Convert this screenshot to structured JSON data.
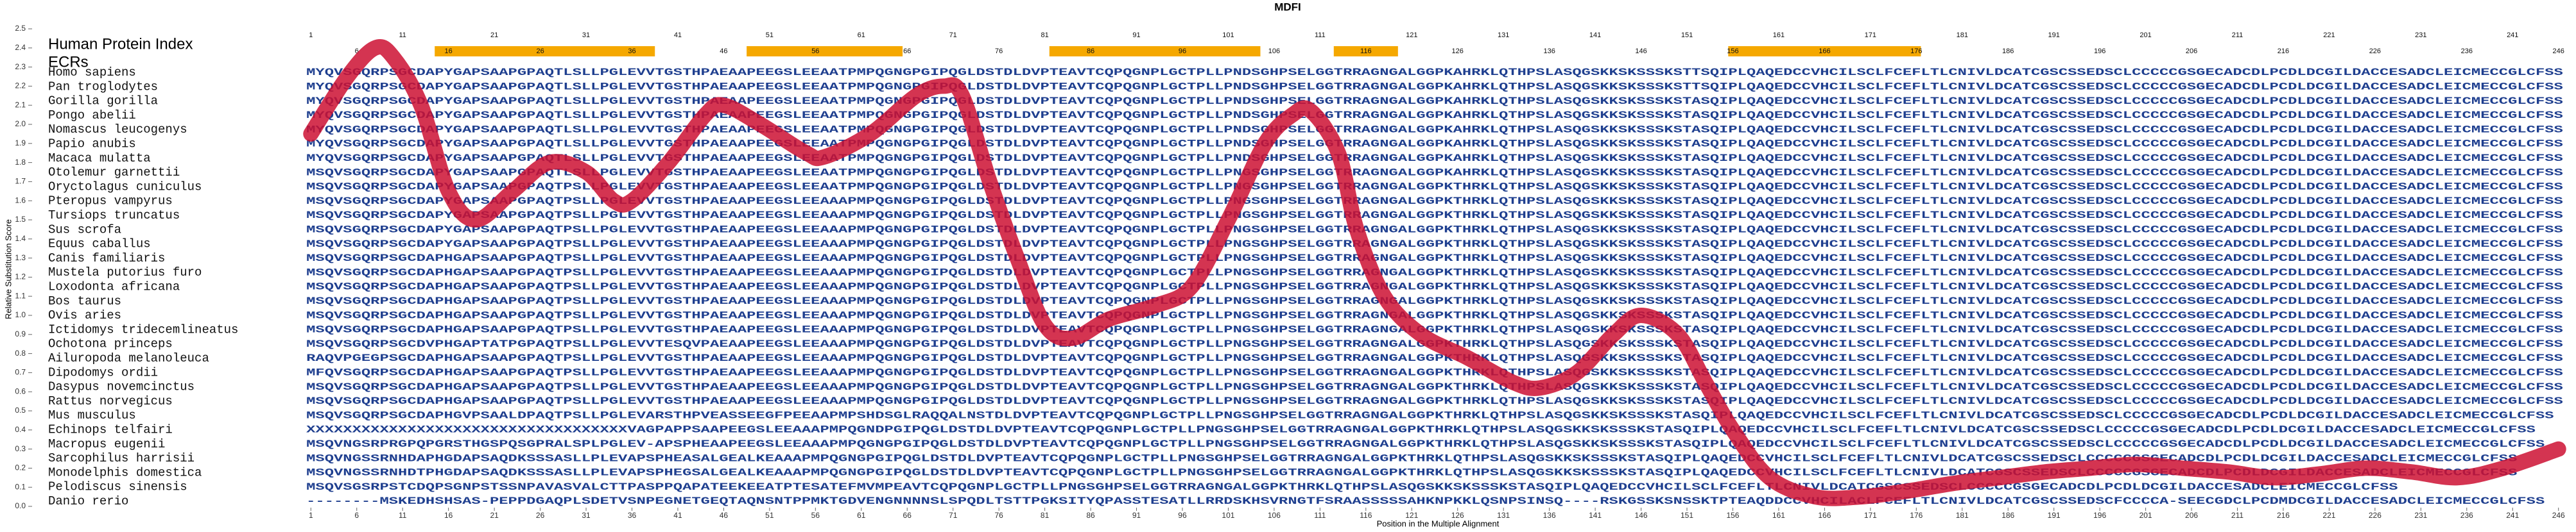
{
  "chart_data": {
    "type": "line",
    "title": "MDFI",
    "index_label": "Human Protein Index",
    "ecr_label": "ECRs",
    "xlabel": "Position in the Multiple Alignment",
    "ylabel": "Relative Substitution Score",
    "color": "#cc1133",
    "ecr_color": "#f5a800",
    "xlim": [
      0,
      247
    ],
    "ylim": [
      0,
      2.5
    ],
    "xticks": [
      1,
      6,
      11,
      16,
      21,
      26,
      31,
      36,
      41,
      46,
      51,
      56,
      61,
      66,
      71,
      76,
      81,
      86,
      91,
      96,
      101,
      106,
      111,
      116,
      121,
      126,
      131,
      136,
      141,
      146,
      151,
      156,
      161,
      166,
      171,
      176,
      181,
      186,
      191,
      196,
      201,
      206,
      211,
      216,
      221,
      226,
      231,
      236,
      241,
      246
    ],
    "yticks": [
      {
        "value": 0,
        "label": "0.0"
      },
      0.1,
      0.2,
      0.3,
      0.4,
      0.5,
      0.6,
      0.7,
      0.8,
      0.9,
      {
        "value": 1,
        "label": "1.0"
      },
      1.1,
      1.2,
      1.3,
      1.4,
      1.5,
      1.6,
      1.7,
      1.8,
      1.9,
      {
        "value": 2,
        "label": "2.0"
      },
      2.1,
      2.2,
      2.3,
      2.4,
      2.5
    ],
    "ecrs": [
      [
        15,
        38
      ],
      [
        49,
        65
      ],
      [
        82,
        104
      ],
      [
        113,
        119
      ],
      [
        156,
        176
      ]
    ],
    "x": [
      1,
      5,
      8,
      10,
      13,
      16,
      19,
      23,
      27,
      31,
      34,
      36,
      40,
      44,
      46,
      50,
      55,
      57,
      62,
      67,
      70,
      72,
      75,
      78,
      81,
      84,
      88,
      93,
      97,
      101,
      105,
      108,
      110,
      113,
      115,
      118,
      122,
      127,
      132,
      135,
      139,
      143,
      146,
      150,
      153,
      156,
      160,
      165,
      170,
      175,
      180,
      185,
      190,
      195,
      200,
      205,
      210,
      215,
      220,
      225,
      230,
      235,
      240,
      246
    ],
    "values": [
      1.95,
      2.25,
      2.4,
      2.35,
      2.1,
      1.65,
      1.5,
      1.65,
      1.8,
      1.75,
      1.6,
      1.6,
      1.8,
      2.05,
      2.1,
      2.0,
      1.85,
      1.83,
      1.95,
      2.15,
      2.2,
      2.15,
      1.7,
      1.3,
      0.95,
      0.88,
      0.98,
      1.05,
      1.15,
      1.5,
      1.9,
      2.05,
      2.07,
      1.85,
      1.45,
      1.1,
      0.9,
      0.78,
      0.65,
      0.62,
      0.7,
      0.9,
      1.0,
      0.9,
      0.65,
      0.4,
      0.15,
      0.05,
      0.05,
      0.08,
      0.12,
      0.15,
      0.18,
      0.2,
      0.22,
      0.2,
      0.18,
      0.15,
      0.17,
      0.2,
      0.18,
      0.15,
      0.2,
      0.3
    ],
    "alignment": [
      {
        "species": "Homo sapiens",
        "sequence": "MYQVSGQRPSGCDAPYGAPSAAPGPAQTLSLLPGLEVVTGSTHPAEAAPEEGSLEEAATPMPQGNGPGIPQGLDSTDLDVPTEAVTCQPQGNPLGCTPLLPNDSGHPSELGGTRRAGNGALGGPKAHRKLQTHPSLASQGSKKSKSSSKSTTSQIPLQAQEDCCVHCILSCLFCEFLTLCNIVLDCATCGSCSSEDSCLCCCCCGSGECADCDLPCDLDCGILDACCESADCLEICMECCGLCFSS"
      },
      {
        "species": "Pan troglodytes",
        "sequence": "MYQVSGQRPSGCDAPYGAPSAAPGPAQTLSLLPGLEVVTGSTHPAEAAPEEGSLEEAATPMPQGNGPGIPQGLDSTDLDVPTEAVTCQPQGNPLGCTPLLPNDSGHPSELGGTRRAGNGALGGPKAHRKLQTHPSLASQGSKKSKSSSKSTTSQIPLQAQEDCCVHCILSCLFCEFLTLCNIVLDCATCGSCSSEDSCLCCCCCGSGECADCDLPCDLDCGILDACCESADCLEICMECCGLCFSS"
      },
      {
        "species": "Gorilla gorilla",
        "sequence": "MYQVSGQRPSGCDAPYGAPSAAPGPAQTLSLLPGLEVVTGSTHPAEAAPEEGSLEEAATPMPQGNGPGIPQGLDSTDLDVPTEAVTCQPQGNPLGCTPLLPNDSGHPSELGGTRRAGNGALGGPKAHRKLQTHPSLASQGSKKSKSSSKSTASQIPLQAQEDCCVHCILSCLFCEFLTLCNIVLDCATCGSCSSEDSCLCCCCCGSGECADCDLPCDLDCGILDACCESADCLEICMECCGLCFSS"
      },
      {
        "species": "Pongo abelii",
        "sequence": "MYQVSGQRPSGCDAPYGAPSAAPGPAQTLSLLPGLEVVTGSTHPAEAAPEEGSLEEAATPMPQGNGPGIPQGLDSTDLDVPTEAVTCQPQGNPLGCTPLLPNDSGHPSELGGTRRAGNGALGGPKAHRKLQTHPSLASQGSKKSKSSSKSTASQIPLQAQEDCCVHCILSCLFCEFLTLCNIVLDCATCGSCSSEDSCLCCCCCGSGECADCDLPCDLDCGILDACCESADCLEICMECCGLCFSS"
      },
      {
        "species": "Nomascus leucogenys",
        "sequence": "MYQVSGQRPSGCDAPYGAPSAAPGPAQTLSLLPGLEVVTGSTHPAEAAPEEGSLEEAATPMPQGNGPGIPQGLDSTDLDVPTEAVTCQPQGNPLGCTPLLPNDSGHPSELGGTRRAGNGALGGPKAHRKLQTHPSLASQGSKKSKSSSKSTASQIPLQAQEDCCVHCILSCLFCEFLTLCNIVLDCATCGSCSSEDSCLCCCCCGSGECADCDLPCDLDCGILDACCESADCLEICMECCGLCFSS"
      },
      {
        "species": "Papio anubis",
        "sequence": "MYQVSGQRPSGCDAPYGAPSAAPGPAQTLSLLPGLEVVTGSTHPAEAAPEEGSLEEAATPMPQGNGPGIPQGLDSTDLDVPTEAVTCQPQGNPLGCTPLLPNDSGHPSELGGTRRAGNGALGGPKAHRKLQTHPSLASQGSKKSKSSSKSTASQIPLQAQEDCCVHCILSCLFCEFLTLCNIVLDCATCGSCSSEDSCLCCCCCGSGECADCDLPCDLDCGILDACCESADCLEICMECCGLCFSS"
      },
      {
        "species": "Macaca mulatta",
        "sequence": "MYQVSGQRPSGCDAPYGAPSAAPGPAQTLSLLPGLEVVTGSTHPAEAAPEEGSLEEAATPMPQGNGPGIPQGLDSTDLDVPTEAVTCQPQGNPLGCTPLLPNDSGHPSELGGTRRAGNGALGGPKAHRKLQTHPSLASQGSKKSKSSSKSTASQIPLQAQEDCCVHCILSCLFCEFLTLCNIVLDCATCGSCSSEDSCLCCCCCGSGECADCDLPCDLDCGILDACCESADCLEICMECCGLCFSS"
      },
      {
        "species": "Otolemur garnettii",
        "sequence": "MSQVSGQRPSGCDAPYGAPSAAPGPAQTLSLLPGLEVVTGSTHPAEAAPEEGSLEEAATPMPQGNGPGIPQGLDSTDLDVPTEAVTCQPQGNPLGCTPLLPNGSGHPSELGGTRRAGNGALGGPKAHRKLQTHPSLASQGSKKSKSSSKSTASQIPLQAQEDCCVHCILSCLFCEFLTLCNIVLDCATCGSCSSEDSCLCCCCCGSGECADCDLPCDLDCGILDACCESADCLEICMECCGLCFSS"
      },
      {
        "species": "Oryctolagus cuniculus",
        "sequence": "MSQVSGQRPSGCDAPYGAPSAAPGPAQTPSLLPGLEVVTGSTHPAEAAPEEGSLEEAATPMPQGNGPGIPQGLDSTDLDVPTEAVTCQPQGNPLGCTPLLPNGSGHPSELGGTRRAGNGALGGPKTHRKLQTHPSLASQGSKKSKSSSKSTASQIPLQAQEDCCVHCILSCLFCEFLTLCNIVLDCATCGSCSSEDSCLCCCCCGSGECADCDLPCDLDCGILDACCESADCLEICMECCGLCFSS"
      },
      {
        "species": "Pteropus vampyrus",
        "sequence": "MSQVSGQRPSGCDAPYGAPSAAPGPAQTPSLLPGLEVVTGSTHPAEAAPEEGSLEEAAAPMPQGNGPGIPQGLDSTDLDVPTEAVTCQPQGNPLGCTPLLPNGSGHPSELGGTRRAGNGALGGPKTHRKLQTHPSLASQGSKKSKSSSKSTASQIPLQAQEDCCVHCILSCLFCEFLTLCNIVLDCATCGSCSSEDSCLCCCCCGSGECADCDLPCDLDCGILDACCESADCLEICMECCGLCFSS"
      },
      {
        "species": "Tursiops truncatus",
        "sequence": "MSQVSGQRPSGCDAPYGAPSAAPGPAQTPSLLPGLEVVTGSTHPAEAAPEEGSLEEAAAPMPQGNGPGIPQGLDSTDLDVPTEAVTCQPQGNPLGCTPLLPNGSGHPSELGGTRRAGNGALGGPKTHRKLQTHPSLASQGSKKSKSSSKSTASQIPLQAQEDCCVHCILSCLFCEFLTLCNIVLDCATCGSCSSEDSCLCCCCCGSGECADCDLPCDLDCGILDACCESADCLEICMECCGLCFSS"
      },
      {
        "species": "Sus scrofa",
        "sequence": "MSQVSGQRPSGCDAPYGAPSAAPGPAQTPSLLPGLEVVTGSTHPAEAAPEEGSLEEAAAPMPQGNGPGIPQGLDSTDLDVPTEAVTCQPQGNPLGCTPLLPNGSGHPSELGGTRRAGNGALGGPKTHRKLQTHPSLASQGSKKSKSSSKSTASQIPLQAQEDCCVHCILSCLFCEFLTLCNIVLDCATCGSCSSEDSCLCCCCCGSGECADCDLPCDLDCGILDACCESADCLEICMECCGLCFSS"
      },
      {
        "species": "Equus caballus",
        "sequence": "MSQVSGQRPSGCDAPYGAPSAAPGPAQTPSLLPGLEVVTGSTHPAEAAPEEGSLEEAAAPMPQGNGPGIPQGLDSTDLDVPTEAVTCQPQGNPLGCTPLLPNGSGHPSELGGTRRAGNGALGGPKTHRKLQTHPSLASQGSKKSKSSSKSTASQIPLQAQEDCCVHCILSCLFCEFLTLCNIVLDCATCGSCSSEDSCLCCCCCGSGECADCDLPCDLDCGILDACCESADCLEICMECCGLCFSS"
      },
      {
        "species": "Canis familiaris",
        "sequence": "MSQVSGQRPSGCDAPHGAPSAAPGPAQTPSLLPGLEVVTGSTHPAEAAPEEGSLEEAAAPMPQGNGPGIPQGLDSTDLDVPTEAVTCQPQGNPLGCTPLLPNGSGHPSELGGTRRAGNGALGGPKTHRKLQTHPSLASQGSKKSKSSSKSTASQIPLQAQEDCCVHCILSCLFCEFLTLCNIVLDCATCGSCSSEDSCLCCCCCGSGECADCDLPCDLDCGILDACCESADCLEICMECCGLCFSS"
      },
      {
        "species": "Mustela putorius furo",
        "sequence": "MSQVSGQRPSGCDAPHGAPSAAPGPAQTPSLLPGLEVVTGSTHPAEAAPEEGSLEEAAAPMPQGNGPGIPQGLDSTDLDVPTEAVTCQPQGNPLGCTPLLPNGSGHPSELGGTRRAGNGALGGPKTHRKLQTHPSLASQGSKKSKSSSKSTASQIPLQAQEDCCVHCILSCLFCEFLTLCNIVLDCATCGSCSSEDSCLCCCCCGSGECADCDLPCDLDCGILDACCESADCLEICMECCGLCFSS"
      },
      {
        "species": "Loxodonta africana",
        "sequence": "MSQVSGQRPSGCDAPHGAPSAAPGPAQTPSLLPGLEVVTGSTHPAEAAPEEGSLEEAAAPMPQGNGPGIPQGLDSTDLDVPTEAVTCQPQGNPLGCTPLLPNGSGHPSELGGTRRAGNGALGGPKTHRKLQTHPSLASQGSKKSKSSSKSTASQIPLQAQEDCCVHCILSCLFCEFLTLCNIVLDCATCGSCSSEDSCLCCCCCGSGECADCDLPCDLDCGILDACCESADCLEICMECCGLCFSS"
      },
      {
        "species": "Bos taurus",
        "sequence": "MSQVSGQRPSGCDAPHGAPSAAPGPAQTPSLLPGLEVVTGSTHPAEAAPEEGSLEEAAAPMPQGNGPGIPQGLDSTDLDVPTEAVTCQPQGNPLGCTPLLPNGSGHPSELGGTRRAGNGALGGPKTHRKLQTHPSLASQGSKKSKSSSKSTASQIPLQAQEDCCVHCILSCLFCEFLTLCNIVLDCATCGSCSSEDSCLCCCCCGSGECADCDLPCDLDCGILDACCESADCLEICMECCGLCFSS"
      },
      {
        "species": "Ovis aries",
        "sequence": "MSQVSGQRPSGCDAPHGAPSAAPGPAQTPSLLPGLEVVTGSTHPAEAAPEEGSLEEAAAPMPQGNGPGIPQGLDSTDLDVPTEAVTCQPQGNPLGCTPLLPNGSGHPSELGGTRRAGNGALGGPKTHRKLQTHPSLASQGSKKSKSSSKSTASQIPLQAQEDCCVHCILSCLFCEFLTLCNIVLDCATCGSCSSEDSCLCCCCCGSGECADCDLPCDLDCGILDACCESADCLEICMECCGLCFSS"
      },
      {
        "species": "Ictidomys tridecemlineatus",
        "sequence": "MSQVSGQRPSGCDAPHGAPSAAPGPAQTPSLLPGLEVVTGSTHPAEAAPEEGSLEEAAAPMPQGNGPGIPQGLDSTDLDVPTEAVTCQPQGNPLGCTPLLPNGSGHPSELGGTRRAGNGALGGPKTHRKLQTHPSLASQGSKKSKSSSKSTASQIPLQAQEDCCVHCILSCLFCEFLTLCNIVLDCATCGSCSSEDSCLCCCCCGSGECADCDLPCDLDCGILDACCESADCLEICMECCGLCFSS"
      },
      {
        "species": "Ochotona princeps",
        "sequence": "MSQVSGQRPSGCDVPHGAPTATPGPAQTPSLLPGLEVVTESQVPAEAAPEEGSLEEAAAPMPQGNGPGIPQGLDSTDLDVPTEAVTCQPQGNPLGCTPLLPNGSGHPSELGGTRRAGNGALGGPKTHRKLQTHPSLASQGSKKSKSSSKSTASQIPLQAQEDCCVHCILSCLFCEFLTLCNIVLDCATCGSCSSEDSCLCCCCCGSGECADCDLPCDLDCGILDACCESADCLEICMECCGLCFSS"
      },
      {
        "species": "Ailuropoda melanoleuca",
        "sequence": "RAQVPGEGPSGCDAPHGAPSAAPGPAQTPSLLPGLEVVTGSTHPAEAAPEEGSLEEAAAPMPQGNGPGIPQGLDSTDLDVPTEAVTCQPQGNPLGCTPLLPNGSGHPSELGGTRRAGNGALGGPKTHRKLQTHPSLASQGSKKSKSSSKSTASQIPLQAQEDCCVHCILSCLFCEFLTLCNIVLDCATCGSCSSEDSCLCCCCCGSGECADCDLPCDLDCGILDACCESADCLEICMECCGLCFSS"
      },
      {
        "species": "Dipodomys ordii",
        "sequence": "MFQVSGQRPSGCDAPHGAPSAAPGPAQTPSLLPGLEVVTGSTHPAEAAPEEGSLEEAAAPMPQGNGPGIPQGLDSTDLDVPTEAVTCQPQGNPLGCTPLLPNGSGHPSELGGTRRAGNGALGGPKTHRKLQTHPSLASQGSKKSKSSSKSTASQIPLQAQEDCCVHCILSCLFCEFLTLCNIVLDCATCGSCSSEDSCLCCCCCGSGECADCDLPCDLDCGILDACCESADCLEICMECCGLCFSS"
      },
      {
        "species": "Dasypus novemcinctus",
        "sequence": "MSQVSGQRPSGCDAPHGAPSAAPGPAQTPSLLPGLEVVTGSTHPAEAAPEEGSLEEAAAPMPQGNGPGIPQGLDSTDLDVPTEAVTCQPQGNPLGCTPLLPNGSGHPSELGGTRRAGNGALGGPKTHRKLQTHPSLASQGSKKSKSSSKSTASQIPLQAQEDCCVHCILSCLFCEFLTLCNIVLDCATCGSCSSEDSCLCCCCCGSGECADCDLPCDLDCGILDACCESADCLEICMECCGLCFSS"
      },
      {
        "species": "Rattus norvegicus",
        "sequence": "MSQVSGQRPSGCDAPHGAPSAAPGPAQTPSLLPGLEVVTGSTHPAEAAPEEGSLEEAAAPMPQGNGPGIPQGLDSTDLDVPTEAVTCQPQGNPLGCTPLLPNGSGHPSELGGTRRAGNGALGGPKTHRKLQTHPSLASQGSKKSKSSSKSTASQIPLQAQEDCCVHCILSCLFCEFLTLCNIVLDCATCGSCSSEDSCLCCCCCGSGECADCDLPCDLDCGILDACCESADCLEICMECCGLCFSS"
      },
      {
        "species": "Mus musculus",
        "sequence": "MSQVSGQRPSGCDAPHGVPSAALDPAQTPSLLPGLEVARSTHPVEASSEEGFPEEAAPMPSHDSGLRAQQALNSTDLDVPTEAVTCQPQGNPLGCTPLLPNGSGHPSELGGTRRAGNGALGGPKTHRKLQTHPSLASQGSKKSKSSSKSTASQIPLQAQEDCCVHCILSCLFCEFLTLCNIVLDCATCGSCSSEDSCLCCCCCGSGECADCDLPCDLDCGILDACCESADCLEICMECCGLCFSS"
      },
      {
        "species": "Echinops telfairi",
        "sequence": "XXXXXXXXXXXXXXXXXXXXXXXXXXXXXXXXXXXVAGPAPPSAAPEEGSLEEAAAPMPQGNDPGIPQGLDSTDLDVPTEAVTCQPQGNPLGCTPLLPNGSGHPSELGGTRRAGNGALGGPKTHRKLQTHPSLASQGSKKSKSSSKSTASQIPLQAQEDCCVHCILSCLFCEFLTLCNIVLDCATCGSCSSEDSCLCCCCCGSGECADCDLPCDLDCGILDACCESADCLEICMECCGLCFSS"
      },
      {
        "species": "Macropus eugenii",
        "sequence": "MSQVNGSRPRGPQPGRSTHGSPQSGPRALSPLPGLEV-APSPHEAAPEEGSLEEAAAPMPQGNGPGIPQGLDSTDLDVPTEAVTCQPQGNPLGCTPLLPNGSGHPSELGGTRRAGNGALGGPKTHRKLQTHPSLASQGSKKSKSSSKSTASQIPLQAQEDCCVHCILSCLFCEFLTLCNIVLDCATCGSCSSEDSCLCCCCCGSGECADCDLPCDLDCGILDACCESADCLEICMECCGLCFSS"
      },
      {
        "species": "Sarcophilus harrisii",
        "sequence": "MSQVNGSSRNHDAPHGDAPSAQDKSSSASLLPLEVAPSPHEASALGEALKEAAAPMPQGNGPGIPQGLDSTDLDVPTEAVTCQPQGNPLGCTPLLPNGSGHPSELGGTRRAGNGALGGPKTHRKLQTHPSLASQGSKKSKSSSKSTASQIPLQAQEDCCVHCILSCLFCEFLTLCNIVLDCATCGSCSSEDSCLCCCCCGSGECADCDLPCDLDCGILDACCESADCLEICMECCGLCFSS"
      },
      {
        "species": "Monodelphis domestica",
        "sequence": "MSQVNGSSRNHDTPHGDAPSAQDKSSSASLLPLEVAPSPHEGSALGEALKEAAAPMPQGNGPGIPQGLDSTDLDVPTEAVTCQPQGNPLGCTPLLPNGSGHPSELGGTRRAGNGALGGPKTHRKLQTHPSLASQGSKKSKSSSKSTASQIPLQAQEDCCVHCILSCLFCEFLTLCNIVLDCATCGSCSSEDSCLCCCCCGSGECADCDLPCDLDCGILDACCESADCLEICMECCGLCFSS"
      },
      {
        "species": "Pelodiscus sinensis",
        "sequence": "MSQVSGSRPSTCDQPSGNPSTSSNPAVASVALCTTPASPPQAPATEEKEEATPTESATEFMVMPEAVTCQPQGNPLGCTPLLPNGSGHPSELGGTRRAGNGALGGPKTHRKLQTHPSLASQGSKKSKSSSKSTASQIPLQAQEDCCVHCILSCLFCEFLTLCNIVLDCATCGSCSSEDSCLCCCCCGSGECADCDLPCDLDCGILDACCESADCLEICMECCGLCFSS"
      },
      {
        "species": "Danio rerio",
        "sequence": "--------MSKEDHSHSAS-PEPPDGAQPLSDETVSNPEGNETGEQTAQNSNTPPMKTGDVENGNNNNSLSPQDLTSTTPGKSITYQPASSTESATLLRRDSKHSVRNGTFSRAASSSSSAHKNPKKLQSNPSINSQ----RSKGSSKSNSSKTPTEAQDDCCVHCILACLFCEFLTLCNIVLDCATCGSCSSEDSCFCCCCA-SEECGDCLPCDMDCGILDACCESADCLEICMECCGLCFSS"
      }
    ]
  }
}
